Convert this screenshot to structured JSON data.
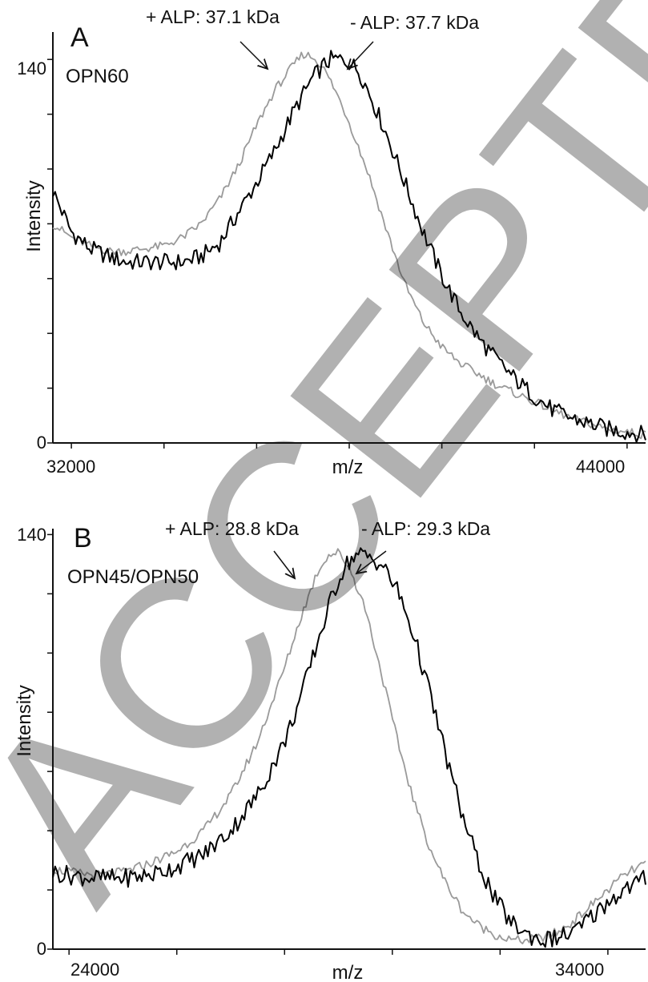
{
  "watermark": "ACCEPTED(a) POST-PRINT",
  "panels": [
    {
      "letter": "A",
      "sample": "OPN60",
      "xlabel": "m/z",
      "ylabel": "Intensity",
      "x_tick_labels": [
        "32000",
        "44000"
      ],
      "y_tick_labels": [
        "140",
        "0"
      ],
      "annotations": [
        "+ ALP: 37.1 kDa",
        "- ALP: 37.7 kDa"
      ]
    },
    {
      "letter": "B",
      "sample": "OPN45/OPN50",
      "xlabel": "m/z",
      "ylabel": "Intensity",
      "x_tick_labels": [
        "24000",
        "34000"
      ],
      "y_tick_labels": [
        "140",
        "0"
      ],
      "annotations": [
        "+ ALP: 28.8 kDa",
        "- ALP: 29.3 kDa"
      ]
    }
  ],
  "chart_data": [
    {
      "type": "line",
      "title": "",
      "xlabel": "m/z",
      "ylabel": "Intensity",
      "xlim": [
        31600,
        44400
      ],
      "ylim": [
        0,
        150
      ],
      "xticks": [
        32000,
        34000,
        36000,
        38000,
        40000,
        42000,
        44000
      ],
      "xtick_labels": [
        "32000",
        "",
        "",
        "",
        "",
        "",
        "44000"
      ],
      "yticks": [
        0,
        20,
        40,
        60,
        80,
        100,
        120,
        140
      ],
      "ytick_labels": [
        "0",
        "",
        "",
        "",
        "",
        "",
        "",
        "140"
      ],
      "colors": {
        "minus_alp": "#000000",
        "plus_alp": "#9a9a9a"
      },
      "annotations": [
        {
          "text": "+ ALP: 37.1 kDa",
          "x": 37100
        },
        {
          "text": "- ALP: 37.7 kDa",
          "x": 37700
        }
      ],
      "series": [
        {
          "color": "#000000",
          "x": [
            31600,
            32000,
            32400,
            32800,
            33200,
            33600,
            34000,
            34400,
            34800,
            35200,
            35600,
            36000,
            36400,
            36800,
            37200,
            37400,
            37600,
            37800,
            38000,
            38200,
            38400,
            38800,
            39200,
            39600,
            40000,
            40400,
            40800,
            41200,
            41600,
            42000,
            42400,
            42800,
            43200,
            43600,
            44000,
            44400
          ],
          "y": [
            92,
            77,
            71,
            68,
            66,
            66,
            66,
            66,
            68,
            73,
            84,
            95,
            107,
            121,
            133,
            137,
            140,
            140,
            139,
            136,
            129,
            113,
            95,
            77,
            61,
            48,
            38,
            30,
            23,
            17,
            12,
            9,
            7,
            5,
            4,
            3
          ]
        },
        {
          "color": "#9a9a9a",
          "x": [
            31600,
            32000,
            32400,
            32800,
            33200,
            33600,
            34000,
            34400,
            34800,
            35200,
            35600,
            36000,
            36400,
            36800,
            37000,
            37200,
            37400,
            37600,
            37800,
            38000,
            38400,
            38800,
            39200,
            39600,
            40000,
            40400,
            40800,
            41200,
            41600,
            42000,
            42400,
            42800,
            43200,
            43600,
            44000,
            44400
          ],
          "y": [
            80,
            75,
            72,
            70,
            70,
            71,
            72,
            75,
            80,
            89,
            101,
            116,
            129,
            138,
            142,
            141,
            138,
            132,
            125,
            117,
            99,
            78,
            58,
            44,
            35,
            29,
            25,
            21,
            18,
            15,
            12,
            9,
            7,
            5,
            4,
            3
          ]
        }
      ]
    },
    {
      "type": "line",
      "title": "",
      "xlabel": "m/z",
      "ylabel": "Intensity",
      "xlim": [
        23700,
        34700
      ],
      "ylim": [
        0,
        142
      ],
      "xticks": [
        24000,
        26000,
        28000,
        30000,
        32000,
        34000
      ],
      "xtick_labels": [
        "24000",
        "",
        "",
        "",
        "",
        "34000"
      ],
      "yticks": [
        0,
        20,
        40,
        60,
        80,
        100,
        120,
        140
      ],
      "ytick_labels": [
        "0",
        "",
        "",
        "",
        "",
        "",
        "",
        "140"
      ],
      "colors": {
        "minus_alp": "#000000",
        "plus_alp": "#9a9a9a"
      },
      "annotations": [
        {
          "text": "+ ALP: 28.8 kDa",
          "x": 28800
        },
        {
          "text": "- ALP: 29.3 kDa",
          "x": 29300
        }
      ],
      "series": [
        {
          "color": "#000000",
          "x": [
            23700,
            24000,
            24500,
            25000,
            25500,
            26000,
            26500,
            27000,
            27500,
            28000,
            28300,
            28600,
            28900,
            29100,
            29300,
            29500,
            29800,
            30100,
            30400,
            30700,
            31000,
            31300,
            31600,
            31900,
            32200,
            32500,
            32800,
            33100,
            33400,
            33700,
            34000,
            34300,
            34700
          ],
          "y": [
            26,
            25,
            24,
            24,
            25,
            28,
            32,
            40,
            52,
            70,
            85,
            103,
            120,
            129,
            133,
            133,
            130,
            121,
            106,
            86,
            65,
            45,
            29,
            17,
            9,
            5,
            3,
            4,
            6,
            11,
            16,
            20,
            24
          ]
        },
        {
          "color": "#9a9a9a",
          "x": [
            23700,
            24000,
            24500,
            25000,
            25500,
            26000,
            26500,
            27000,
            27500,
            28000,
            28300,
            28600,
            28800,
            29000,
            29200,
            29500,
            29800,
            30100,
            30400,
            30700,
            31000,
            31300,
            31600,
            31900,
            32200,
            32500,
            32800,
            33100,
            33400,
            33700,
            34000,
            34300,
            34700
          ],
          "y": [
            27,
            26,
            25,
            26,
            29,
            33,
            40,
            52,
            70,
            95,
            112,
            127,
            133,
            134,
            129,
            115,
            93,
            70,
            50,
            34,
            22,
            13,
            8,
            5,
            3,
            3,
            4,
            6,
            10,
            15,
            20,
            25,
            29
          ]
        }
      ]
    }
  ]
}
